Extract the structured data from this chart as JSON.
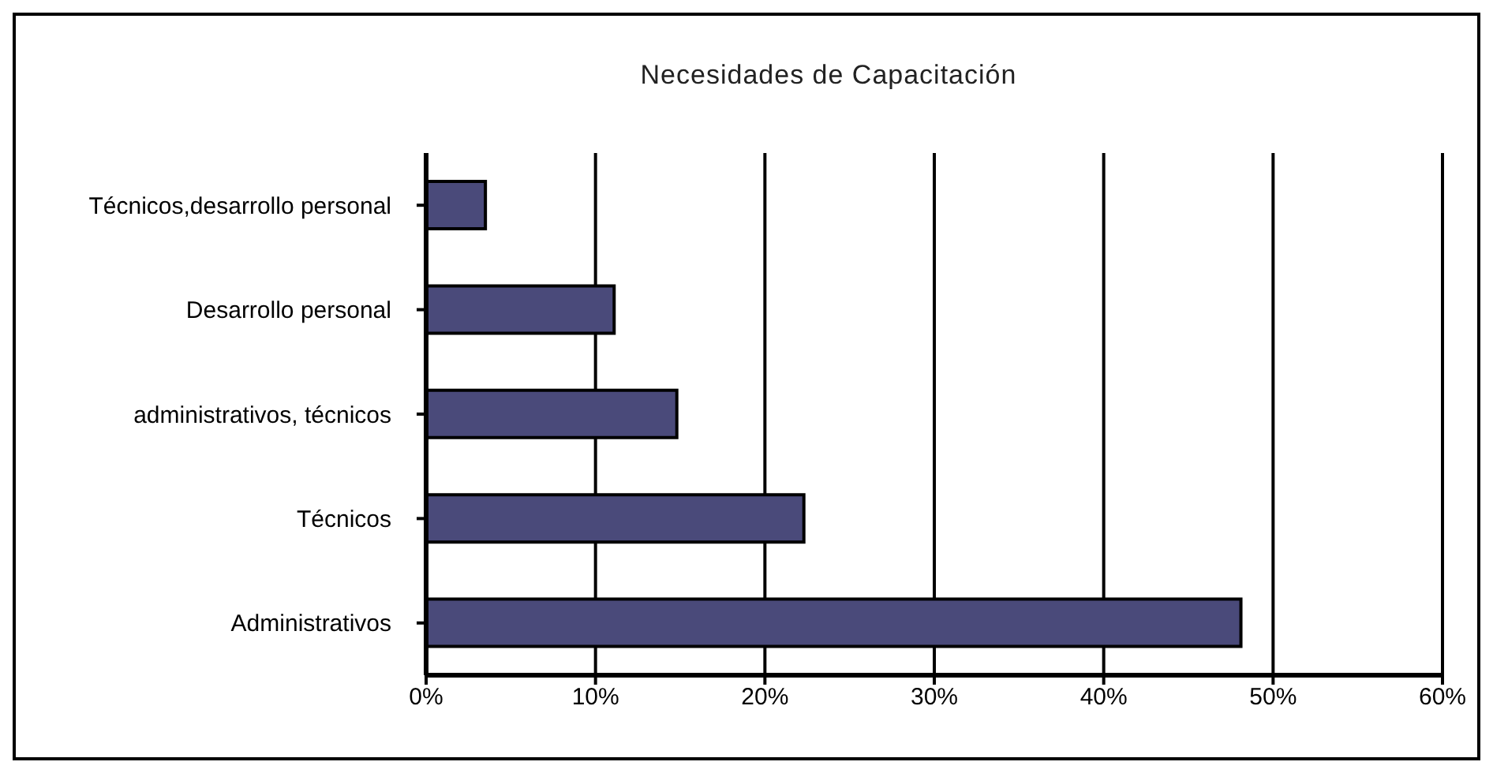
{
  "chart_data": {
    "type": "bar",
    "orientation": "horizontal",
    "title": "Necesidades de Capacitación",
    "categories": [
      "Técnicos,desarrollo personal",
      "Desarrollo personal",
      "administrativos, técnicos",
      "Técnicos",
      "Administrativos"
    ],
    "values": [
      3.5,
      11.1,
      14.8,
      22.3,
      48.1
    ],
    "color": "#4a4a7a",
    "xlim": [
      0,
      60
    ],
    "xticks": [
      {
        "value": 0,
        "label": "0%"
      },
      {
        "value": 10,
        "label": "10%"
      },
      {
        "value": 20,
        "label": "20%"
      },
      {
        "value": 30,
        "label": "30%"
      },
      {
        "value": 40,
        "label": "40%"
      },
      {
        "value": 50,
        "label": "50%"
      },
      {
        "value": 60,
        "label": "60%"
      }
    ],
    "grid": "x"
  }
}
